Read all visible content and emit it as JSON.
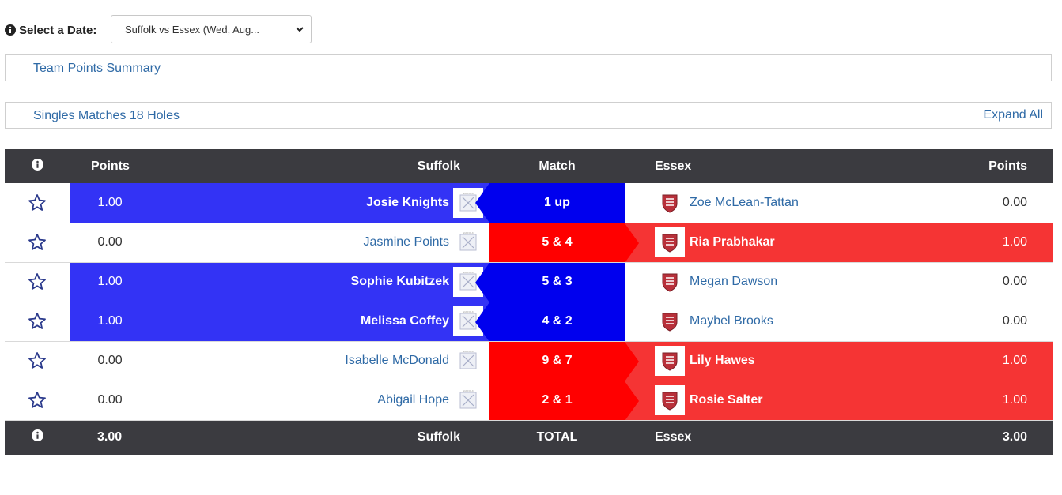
{
  "header": {
    "date_label": "Select a Date:",
    "date_value": "Suffolk vs Essex (Wed, Aug..."
  },
  "panels": {
    "team_points": "Team Points Summary",
    "singles": "Singles Matches 18 Holes",
    "expand_all": "Expand All"
  },
  "table": {
    "headers": {
      "points_left": "Points",
      "suffolk": "Suffolk",
      "match": "Match",
      "essex": "Essex",
      "points_right": "Points"
    },
    "rows": [
      {
        "suffolk_points": "1.00",
        "suffolk_player": "Josie Knights",
        "result": "1 up",
        "essex_player": "Zoe McLean-Tattan",
        "essex_points": "0.00"
      },
      {
        "suffolk_points": "0.00",
        "suffolk_player": "Jasmine Points",
        "result": "5 & 4",
        "essex_player": "Ria Prabhakar",
        "essex_points": "1.00"
      },
      {
        "suffolk_points": "1.00",
        "suffolk_player": "Sophie Kubitzek",
        "result": "5 & 3",
        "essex_player": "Megan Dawson",
        "essex_points": "0.00"
      },
      {
        "suffolk_points": "1.00",
        "suffolk_player": "Melissa Coffey",
        "result": "4 & 2",
        "essex_player": "Maybel Brooks",
        "essex_points": "0.00"
      },
      {
        "suffolk_points": "0.00",
        "suffolk_player": "Isabelle McDonald",
        "result": "9 & 7",
        "essex_player": "Lily Hawes",
        "essex_points": "1.00"
      },
      {
        "suffolk_points": "0.00",
        "suffolk_player": "Abigail Hope",
        "result": "2 & 1",
        "essex_player": "Rosie Salter",
        "essex_points": "1.00"
      }
    ],
    "footer": {
      "suffolk_total": "3.00",
      "suffolk": "Suffolk",
      "total": "TOTAL",
      "essex": "Essex",
      "essex_total": "3.00"
    }
  },
  "colors": {
    "suffolk_win": "#3333f5",
    "suffolk_match": "#0000ee",
    "essex_win": "#f53434",
    "essex_match": "#ff0000",
    "header_bg": "#3b3b40",
    "link": "#2f6aa6"
  },
  "icons": [
    "info-circle-icon",
    "chevron-down-icon",
    "star-outline-icon",
    "suffolk-crest-icon",
    "essex-crest-icon"
  ]
}
